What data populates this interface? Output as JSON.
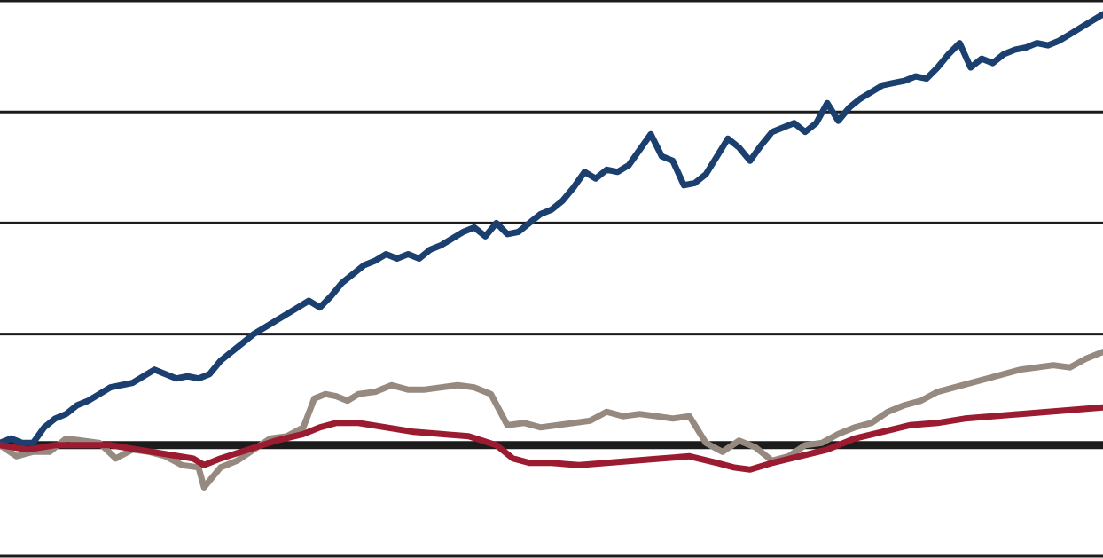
{
  "chart_data": {
    "type": "line",
    "title": "",
    "xlabel": "",
    "ylabel": "",
    "ylim": [
      -5,
      20
    ],
    "xlim": [
      0,
      200
    ],
    "gridlines": [
      20,
      15,
      10,
      5,
      -5
    ],
    "zero_line": 0,
    "grid": true,
    "legend": "none",
    "series": [
      {
        "color": "#1b3f6e",
        "points": [
          [
            0,
            0.1
          ],
          [
            2,
            0.3
          ],
          [
            4,
            0.1
          ],
          [
            6,
            0.1
          ],
          [
            8,
            0.8
          ],
          [
            10,
            1.2
          ],
          [
            12,
            1.4
          ],
          [
            14,
            1.8
          ],
          [
            16,
            2.0
          ],
          [
            18,
            2.3
          ],
          [
            20,
            2.6
          ],
          [
            22,
            2.7
          ],
          [
            24,
            2.8
          ],
          [
            26,
            3.1
          ],
          [
            28,
            3.4
          ],
          [
            30,
            3.2
          ],
          [
            32,
            3.0
          ],
          [
            34,
            3.1
          ],
          [
            36,
            3.0
          ],
          [
            38,
            3.2
          ],
          [
            40,
            3.8
          ],
          [
            42,
            4.2
          ],
          [
            44,
            4.6
          ],
          [
            46,
            5.0
          ],
          [
            48,
            5.3
          ],
          [
            50,
            5.6
          ],
          [
            52,
            5.9
          ],
          [
            54,
            6.2
          ],
          [
            56,
            6.5
          ],
          [
            58,
            6.2
          ],
          [
            60,
            6.7
          ],
          [
            62,
            7.3
          ],
          [
            64,
            7.7
          ],
          [
            66,
            8.1
          ],
          [
            68,
            8.3
          ],
          [
            70,
            8.6
          ],
          [
            72,
            8.4
          ],
          [
            74,
            8.6
          ],
          [
            76,
            8.4
          ],
          [
            78,
            8.8
          ],
          [
            80,
            9.0
          ],
          [
            82,
            9.3
          ],
          [
            84,
            9.6
          ],
          [
            86,
            9.8
          ],
          [
            88,
            9.4
          ],
          [
            90,
            10.0
          ],
          [
            92,
            9.5
          ],
          [
            94,
            9.6
          ],
          [
            96,
            10.0
          ],
          [
            98,
            10.4
          ],
          [
            100,
            10.6
          ],
          [
            102,
            11.0
          ],
          [
            104,
            11.6
          ],
          [
            106,
            12.3
          ],
          [
            108,
            12.0
          ],
          [
            110,
            12.4
          ],
          [
            112,
            12.3
          ],
          [
            114,
            12.6
          ],
          [
            116,
            13.3
          ],
          [
            118,
            14.0
          ],
          [
            120,
            13.0
          ],
          [
            122,
            12.8
          ],
          [
            124,
            11.7
          ],
          [
            126,
            11.8
          ],
          [
            128,
            12.2
          ],
          [
            130,
            13.0
          ],
          [
            132,
            13.8
          ],
          [
            134,
            13.4
          ],
          [
            136,
            12.8
          ],
          [
            138,
            13.5
          ],
          [
            140,
            14.1
          ],
          [
            142,
            14.3
          ],
          [
            144,
            14.5
          ],
          [
            146,
            14.1
          ],
          [
            148,
            14.5
          ],
          [
            150,
            15.4
          ],
          [
            152,
            14.6
          ],
          [
            154,
            15.2
          ],
          [
            156,
            15.6
          ],
          [
            158,
            15.9
          ],
          [
            160,
            16.2
          ],
          [
            162,
            16.3
          ],
          [
            164,
            16.4
          ],
          [
            166,
            16.6
          ],
          [
            168,
            16.5
          ],
          [
            170,
            17.0
          ],
          [
            172,
            17.6
          ],
          [
            174,
            18.1
          ],
          [
            176,
            17.0
          ],
          [
            178,
            17.4
          ],
          [
            180,
            17.2
          ],
          [
            182,
            17.6
          ],
          [
            184,
            17.8
          ],
          [
            186,
            17.9
          ],
          [
            188,
            18.1
          ],
          [
            190,
            18.0
          ],
          [
            192,
            18.2
          ],
          [
            194,
            18.5
          ],
          [
            196,
            18.8
          ],
          [
            198,
            19.1
          ],
          [
            200,
            19.4
          ]
        ]
      },
      {
        "color": "#968a80",
        "points": [
          [
            0,
            0.0
          ],
          [
            3,
            -0.5
          ],
          [
            6,
            -0.3
          ],
          [
            9,
            -0.3
          ],
          [
            12,
            0.3
          ],
          [
            15,
            0.2
          ],
          [
            18,
            0.1
          ],
          [
            21,
            -0.6
          ],
          [
            24,
            -0.2
          ],
          [
            27,
            -0.3
          ],
          [
            30,
            -0.5
          ],
          [
            33,
            -0.9
          ],
          [
            36,
            -1.0
          ],
          [
            37,
            -1.9
          ],
          [
            40,
            -1.0
          ],
          [
            43,
            -0.7
          ],
          [
            46,
            -0.2
          ],
          [
            49,
            0.3
          ],
          [
            52,
            0.4
          ],
          [
            55,
            0.8
          ],
          [
            57,
            2.1
          ],
          [
            59,
            2.3
          ],
          [
            61,
            2.2
          ],
          [
            63,
            2.0
          ],
          [
            65,
            2.3
          ],
          [
            68,
            2.4
          ],
          [
            71,
            2.7
          ],
          [
            74,
            2.5
          ],
          [
            77,
            2.5
          ],
          [
            80,
            2.6
          ],
          [
            83,
            2.7
          ],
          [
            86,
            2.6
          ],
          [
            89,
            2.3
          ],
          [
            92,
            0.9
          ],
          [
            95,
            1.0
          ],
          [
            98,
            0.8
          ],
          [
            101,
            0.9
          ],
          [
            104,
            1.0
          ],
          [
            107,
            1.1
          ],
          [
            110,
            1.5
          ],
          [
            113,
            1.3
          ],
          [
            116,
            1.4
          ],
          [
            119,
            1.3
          ],
          [
            122,
            1.2
          ],
          [
            125,
            1.3
          ],
          [
            128,
            0.1
          ],
          [
            131,
            -0.3
          ],
          [
            134,
            0.2
          ],
          [
            137,
            -0.1
          ],
          [
            140,
            -0.7
          ],
          [
            143,
            -0.5
          ],
          [
            146,
            0.0
          ],
          [
            149,
            0.1
          ],
          [
            152,
            0.5
          ],
          [
            155,
            0.8
          ],
          [
            158,
            1.0
          ],
          [
            161,
            1.5
          ],
          [
            164,
            1.8
          ],
          [
            167,
            2.0
          ],
          [
            170,
            2.4
          ],
          [
            173,
            2.6
          ],
          [
            176,
            2.8
          ],
          [
            179,
            3.0
          ],
          [
            182,
            3.2
          ],
          [
            185,
            3.4
          ],
          [
            188,
            3.5
          ],
          [
            191,
            3.6
          ],
          [
            194,
            3.5
          ],
          [
            197,
            3.9
          ],
          [
            200,
            4.2
          ]
        ]
      },
      {
        "color": "#9b1b30",
        "points": [
          [
            0,
            0.0
          ],
          [
            5,
            -0.2
          ],
          [
            10,
            0.0
          ],
          [
            15,
            0.0
          ],
          [
            20,
            0.0
          ],
          [
            25,
            -0.2
          ],
          [
            30,
            -0.4
          ],
          [
            35,
            -0.6
          ],
          [
            37,
            -0.9
          ],
          [
            40,
            -0.6
          ],
          [
            45,
            -0.2
          ],
          [
            50,
            0.2
          ],
          [
            55,
            0.5
          ],
          [
            58,
            0.8
          ],
          [
            61,
            1.0
          ],
          [
            65,
            1.0
          ],
          [
            70,
            0.8
          ],
          [
            75,
            0.6
          ],
          [
            80,
            0.5
          ],
          [
            85,
            0.4
          ],
          [
            90,
            0.0
          ],
          [
            93,
            -0.6
          ],
          [
            96,
            -0.8
          ],
          [
            100,
            -0.8
          ],
          [
            105,
            -0.9
          ],
          [
            110,
            -0.8
          ],
          [
            115,
            -0.7
          ],
          [
            120,
            -0.6
          ],
          [
            125,
            -0.5
          ],
          [
            130,
            -0.8
          ],
          [
            133,
            -1.0
          ],
          [
            136,
            -1.1
          ],
          [
            140,
            -0.8
          ],
          [
            145,
            -0.5
          ],
          [
            150,
            -0.2
          ],
          [
            155,
            0.3
          ],
          [
            160,
            0.6
          ],
          [
            165,
            0.9
          ],
          [
            170,
            1.0
          ],
          [
            175,
            1.2
          ],
          [
            180,
            1.3
          ],
          [
            185,
            1.4
          ],
          [
            190,
            1.5
          ],
          [
            195,
            1.6
          ],
          [
            200,
            1.7
          ]
        ]
      }
    ]
  }
}
